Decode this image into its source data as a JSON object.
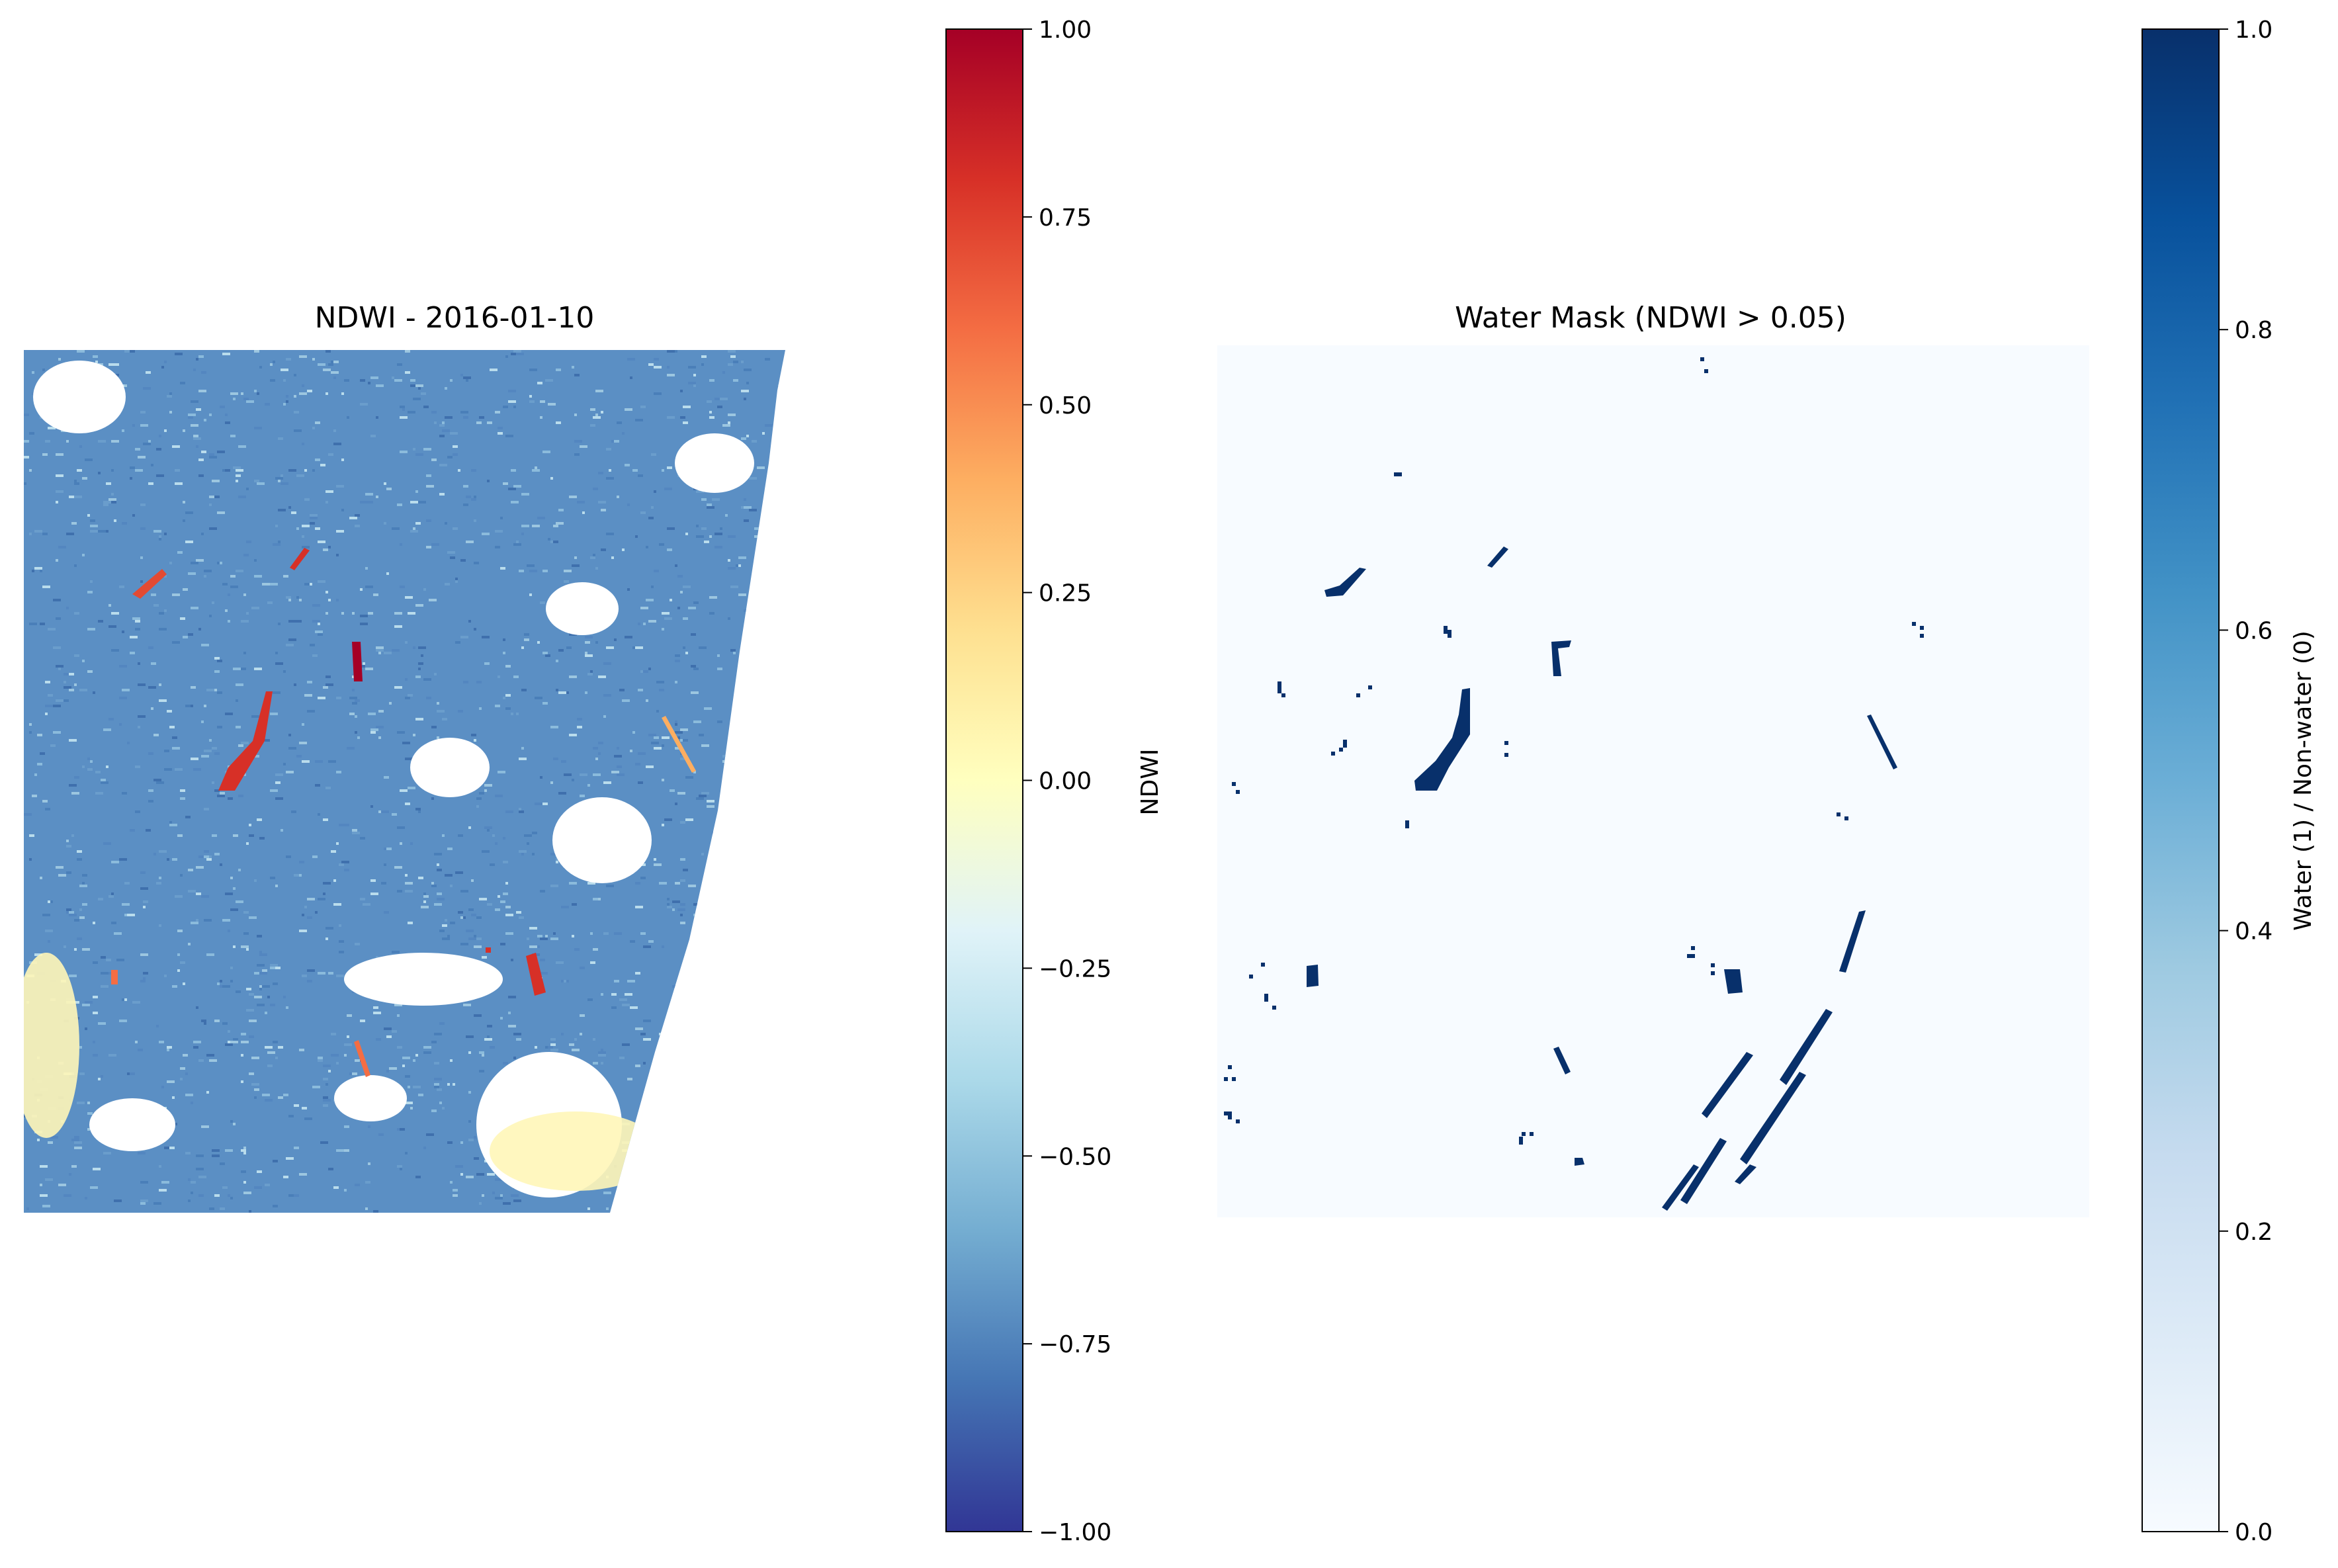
{
  "chart_data": [
    {
      "type": "heatmap",
      "title": "NDWI - 2016-01-10",
      "colormap": "RdYlBu_r",
      "colorbar": {
        "label": "NDWI",
        "range": [
          -1.0,
          1.0
        ],
        "ticks": [
          1.0,
          0.75,
          0.5,
          0.25,
          0.0,
          -0.25,
          -0.5,
          -0.75,
          -1.0
        ],
        "tick_labels": [
          "1.00",
          "0.75",
          "0.50",
          "0.25",
          "0.00",
          "−0.25",
          "−0.50",
          "−0.75",
          "−1.00"
        ],
        "colors": [
          "#313695",
          "#4575b4",
          "#74add1",
          "#abd9e9",
          "#e0f3f8",
          "#ffffbf",
          "#fee090",
          "#fdae61",
          "#f46d43",
          "#d73027",
          "#a50026"
        ]
      },
      "axis": "off",
      "dominant_value_range": [
        -0.85,
        -0.35
      ],
      "features": [
        {
          "label": "water bodies",
          "value_range": [
            0.4,
            1.0
          ]
        },
        {
          "label": "cloud / no-data (white)",
          "value": null
        }
      ]
    },
    {
      "type": "heatmap",
      "title": "Water Mask (NDWI > 0.05)",
      "colormap": "Blues",
      "colorbar": {
        "label": "Water (1) / Non-water (0)",
        "range": [
          0.0,
          1.0
        ],
        "ticks": [
          1.0,
          0.8,
          0.6,
          0.4,
          0.2,
          0.0
        ],
        "tick_labels": [
          "1.0",
          "0.8",
          "0.6",
          "0.4",
          "0.2",
          "0.0"
        ],
        "colors": [
          "#f7fbff",
          "#deebf7",
          "#c6dbef",
          "#9ecae1",
          "#6baed6",
          "#4292c6",
          "#2171b5",
          "#08519c",
          "#08306b"
        ]
      },
      "axis": "off",
      "values": [
        0,
        1
      ]
    }
  ]
}
